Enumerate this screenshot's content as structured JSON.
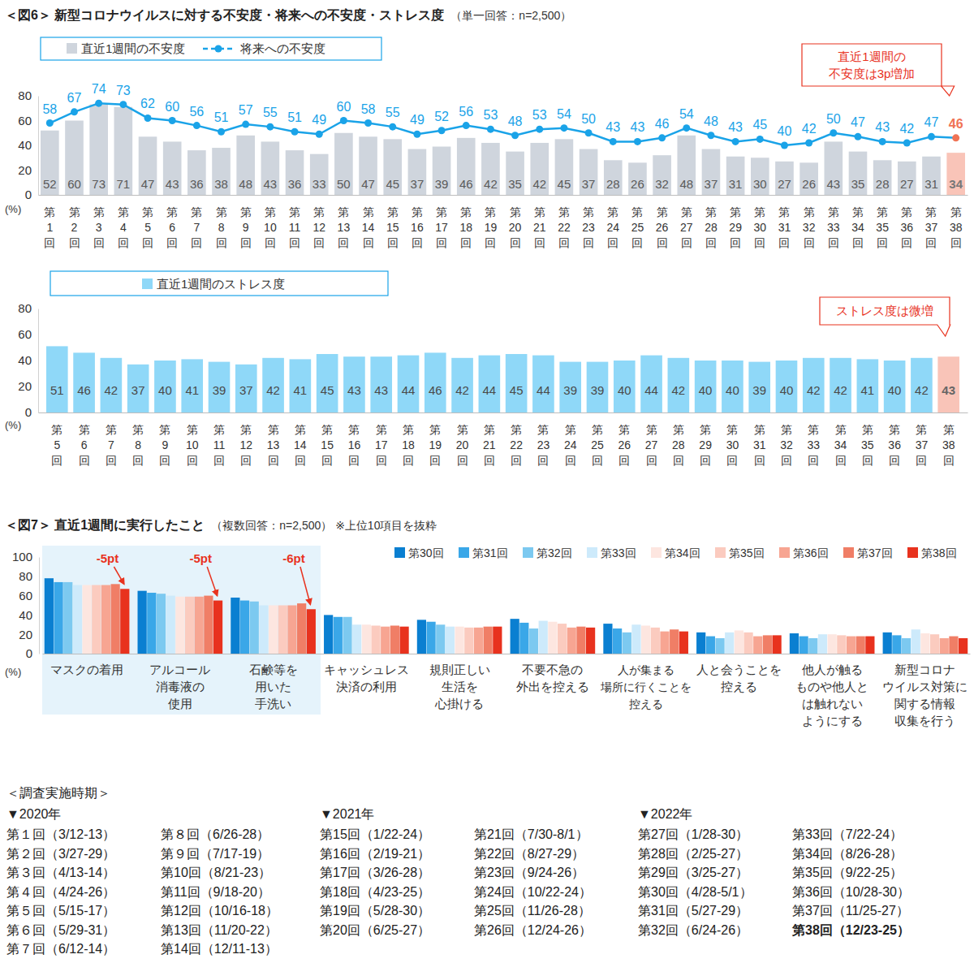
{
  "chart_data": [
    {
      "type": "bar",
      "title": "＜図6＞ 新型コロナウイルスに対する不安度・将来への不安度・ストレス度",
      "subtitle": "（単一回答：n=2,500）",
      "y_label": "(%)",
      "categories": [
        "第1回",
        "第2回",
        "第3回",
        "第4回",
        "第5回",
        "第6回",
        "第7回",
        "第8回",
        "第9回",
        "第10回",
        "第11回",
        "第12回",
        "第13回",
        "第14回",
        "第15回",
        "第16回",
        "第17回",
        "第18回",
        "第19回",
        "第20回",
        "第21回",
        "第22回",
        "第23回",
        "第24回",
        "第25回",
        "第26回",
        "第27回",
        "第28回",
        "第29回",
        "第30回",
        "第31回",
        "第32回",
        "第33回",
        "第34回",
        "第35回",
        "第36回",
        "第37回",
        "第38回"
      ],
      "series": [
        {
          "name": "直近1週間の不安度",
          "type": "bar",
          "colors": [
            "#cfd5dd",
            "#cfd5dd",
            "#cfd5dd",
            "#cfd5dd",
            "#cfd5dd",
            "#cfd5dd",
            "#cfd5dd",
            "#cfd5dd",
            "#cfd5dd",
            "#cfd5dd",
            "#cfd5dd",
            "#cfd5dd",
            "#cfd5dd",
            "#cfd5dd",
            "#cfd5dd",
            "#cfd5dd",
            "#cfd5dd",
            "#cfd5dd",
            "#cfd5dd",
            "#cfd5dd",
            "#cfd5dd",
            "#cfd5dd",
            "#cfd5dd",
            "#cfd5dd",
            "#cfd5dd",
            "#cfd5dd",
            "#cfd5dd",
            "#cfd5dd",
            "#cfd5dd",
            "#cfd5dd",
            "#cfd5dd",
            "#cfd5dd",
            "#cfd5dd",
            "#cfd5dd",
            "#cfd5dd",
            "#cfd5dd",
            "#cfd5dd",
            "#f9c4b8"
          ],
          "values": [
            52,
            60,
            73,
            71,
            47,
            43,
            36,
            38,
            48,
            43,
            36,
            33,
            50,
            47,
            45,
            37,
            39,
            46,
            42,
            35,
            42,
            45,
            37,
            28,
            26,
            32,
            48,
            37,
            31,
            30,
            27,
            26,
            43,
            35,
            28,
            27,
            31,
            34
          ]
        },
        {
          "name": "将来への不安度",
          "type": "line",
          "marker": "circle",
          "color": "#1aa3e8",
          "colors": [
            "#1aa3e8",
            "#1aa3e8",
            "#1aa3e8",
            "#1aa3e8",
            "#1aa3e8",
            "#1aa3e8",
            "#1aa3e8",
            "#1aa3e8",
            "#1aa3e8",
            "#1aa3e8",
            "#1aa3e8",
            "#1aa3e8",
            "#1aa3e8",
            "#1aa3e8",
            "#1aa3e8",
            "#1aa3e8",
            "#1aa3e8",
            "#1aa3e8",
            "#1aa3e8",
            "#1aa3e8",
            "#1aa3e8",
            "#1aa3e8",
            "#1aa3e8",
            "#1aa3e8",
            "#1aa3e8",
            "#1aa3e8",
            "#1aa3e8",
            "#1aa3e8",
            "#1aa3e8",
            "#1aa3e8",
            "#1aa3e8",
            "#1aa3e8",
            "#1aa3e8",
            "#1aa3e8",
            "#1aa3e8",
            "#1aa3e8",
            "#1aa3e8",
            "#f07355"
          ],
          "values": [
            58,
            67,
            74,
            73,
            62,
            60,
            56,
            51,
            57,
            55,
            51,
            49,
            60,
            58,
            55,
            49,
            52,
            56,
            53,
            48,
            53,
            54,
            50,
            43,
            43,
            46,
            54,
            48,
            43,
            45,
            40,
            42,
            50,
            47,
            43,
            42,
            47,
            46
          ]
        }
      ],
      "ylim": [
        0,
        80
      ],
      "yticks": [
        0,
        20,
        40,
        60,
        80
      ],
      "grid": false,
      "data_labels": true,
      "legend": "top-left",
      "annotations": [
        {
          "text": "直近1週間の\n不安度は3p増加"
        }
      ]
    },
    {
      "type": "bar",
      "y_label": "(%)",
      "categories": [
        "第5回",
        "第6回",
        "第7回",
        "第8回",
        "第9回",
        "第10回",
        "第11回",
        "第12回",
        "第13回",
        "第14回",
        "第15回",
        "第16回",
        "第17回",
        "第18回",
        "第19回",
        "第20回",
        "第21回",
        "第22回",
        "第23回",
        "第24回",
        "第25回",
        "第26回",
        "第27回",
        "第28回",
        "第29回",
        "第30回",
        "第31回",
        "第32回",
        "第33回",
        "第34回",
        "第35回",
        "第36回",
        "第37回",
        "第38回"
      ],
      "series": [
        {
          "name": "直近1週間のストレス度",
          "colors": [
            "#8fd8f8",
            "#8fd8f8",
            "#8fd8f8",
            "#8fd8f8",
            "#8fd8f8",
            "#8fd8f8",
            "#8fd8f8",
            "#8fd8f8",
            "#8fd8f8",
            "#8fd8f8",
            "#8fd8f8",
            "#8fd8f8",
            "#8fd8f8",
            "#8fd8f8",
            "#8fd8f8",
            "#8fd8f8",
            "#8fd8f8",
            "#8fd8f8",
            "#8fd8f8",
            "#8fd8f8",
            "#8fd8f8",
            "#8fd8f8",
            "#8fd8f8",
            "#8fd8f8",
            "#8fd8f8",
            "#8fd8f8",
            "#8fd8f8",
            "#8fd8f8",
            "#8fd8f8",
            "#8fd8f8",
            "#8fd8f8",
            "#8fd8f8",
            "#8fd8f8",
            "#f9c4b8"
          ],
          "values": [
            51,
            46,
            42,
            37,
            40,
            41,
            39,
            37,
            42,
            41,
            45,
            43,
            43,
            44,
            46,
            42,
            44,
            45,
            44,
            39,
            39,
            40,
            44,
            42,
            40,
            40,
            39,
            40,
            42,
            42,
            41,
            40,
            42,
            43
          ]
        }
      ],
      "ylim": [
        0,
        80
      ],
      "yticks": [
        0,
        20,
        40,
        60,
        80
      ],
      "grid": false,
      "data_labels": true,
      "legend": "top-left",
      "annotations": [
        {
          "text": "ストレス度は微増"
        }
      ]
    },
    {
      "type": "bar",
      "title": "＜図7＞ 直近1週間に実行したこと",
      "subtitle": "（複数回答：n=2,500） ※上位10項目を抜粋",
      "y_label": "(%)",
      "categories": [
        "マスクの着用",
        "アルコール\n消毒液の\n使用",
        "石鹸等を\n用いた\n手洗い",
        "キャッシュレス\n決済の利用",
        "規則正しい\n生活を\n心掛ける",
        "不要不急の\n外出を控える",
        "人が集まる\n場所に行くことを\n控える",
        "人と会うことを\n控える",
        "他人が触る\nものや他人と\nは触れない\nようにする",
        "新型コロナ\nウイルス対策に\n関する情報\n収集を行う"
      ],
      "series": [
        {
          "name": "第30回",
          "color": "#0a7fd1",
          "values": [
            78,
            65,
            58,
            40,
            35,
            36,
            31,
            22,
            21,
            22
          ]
        },
        {
          "name": "第31回",
          "color": "#3aa7e8",
          "values": [
            74,
            63,
            55,
            38,
            33,
            32,
            26,
            18,
            18,
            19
          ]
        },
        {
          "name": "第32回",
          "color": "#7cc9f0",
          "values": [
            74,
            62,
            54,
            38,
            30,
            26,
            22,
            16,
            16,
            16
          ]
        },
        {
          "name": "第33回",
          "color": "#cdeafb",
          "values": [
            71,
            60,
            50,
            30,
            28,
            34,
            30,
            22,
            20,
            25
          ]
        },
        {
          "name": "第34回",
          "color": "#fde6e0",
          "values": [
            71,
            59,
            50,
            30,
            28,
            33,
            29,
            24,
            20,
            21
          ]
        },
        {
          "name": "第35回",
          "color": "#fbcbbf",
          "values": [
            71,
            59,
            50,
            29,
            27,
            31,
            27,
            22,
            19,
            20
          ]
        },
        {
          "name": "第36回",
          "color": "#f7a592",
          "values": [
            71,
            59,
            50,
            28,
            27,
            27,
            23,
            18,
            18,
            16
          ]
        },
        {
          "name": "第37回",
          "color": "#f07e66",
          "values": [
            72,
            60,
            52,
            29,
            28,
            28,
            25,
            19,
            18,
            18
          ]
        },
        {
          "name": "第38回",
          "color": "#e8321e",
          "values": [
            67,
            55,
            46,
            28,
            28,
            27,
            23,
            19,
            18,
            16
          ]
        }
      ],
      "ylim": [
        0,
        100
      ],
      "yticks": [
        0,
        20,
        40,
        60,
        80,
        100
      ],
      "grid": false,
      "data_labels": false,
      "legend": "top-right",
      "annotations": [
        {
          "text": "-5pt"
        },
        {
          "text": "-5pt"
        },
        {
          "text": "-6pt"
        }
      ]
    }
  ],
  "schedule": {
    "title": "＜調査実施時期＞",
    "years": [
      {
        "label": "▼2020年",
        "columns": [
          [
            "第１回（3/12-13）",
            "第２回（3/27-29）",
            "第３回（4/13-14）",
            "第４回（4/24-26）",
            "第５回（5/15-17）",
            "第６回（5/29-31）",
            "第７回（6/12-14）"
          ],
          [
            "第８回（6/26-28）",
            "第９回（7/17-19）",
            "第10回（8/21-23）",
            "第11回（9/18-20）",
            "第12回（10/16-18）",
            "第13回（11/20-22）",
            "第14回（12/11-13）"
          ]
        ]
      },
      {
        "label": "▼2021年",
        "columns": [
          [
            "第15回（1/22-24）",
            "第16回（2/19-21）",
            "第17回（3/26-28）",
            "第18回（4/23-25）",
            "第19回（5/28-30）",
            "第20回（6/25-27）"
          ],
          [
            "第21回（7/30-8/1）",
            "第22回（8/27-29）",
            "第23回（9/24-26）",
            "第24回（10/22-24）",
            "第25回（11/26-28）",
            "第26回（12/24-26）"
          ]
        ]
      },
      {
        "label": "▼2022年",
        "columns": [
          [
            "第27回（1/28-30）",
            "第28回（2/25-27）",
            "第29回（3/25-27）",
            "第30回（4/28-5/1）",
            "第31回（5/27-29）",
            "第32回（6/24-26）"
          ],
          [
            "第33回（7/22-24）",
            "第34回（8/26-28）",
            "第35回（9/22-25）",
            "第36回（10/28-30）",
            "第37回（11/25-27）",
            "第38回（12/23-25）"
          ]
        ]
      }
    ]
  }
}
